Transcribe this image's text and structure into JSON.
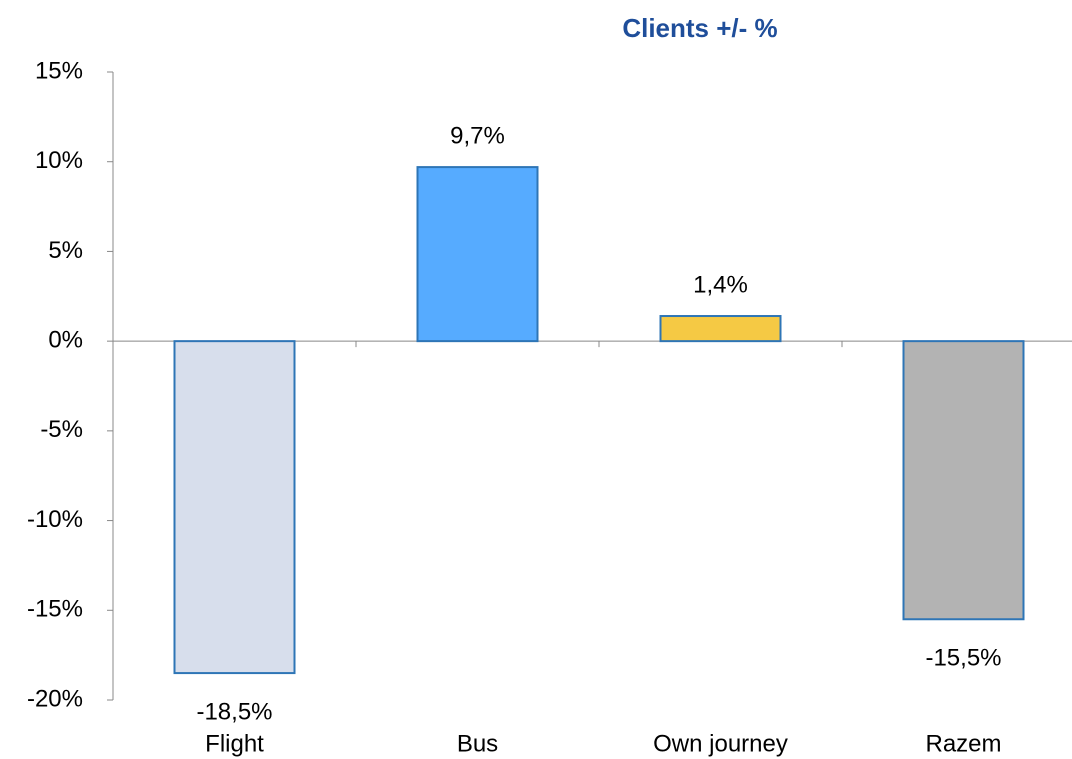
{
  "chart_data": {
    "type": "bar",
    "title": "Clients +/- %",
    "categories": [
      "Flight",
      "Bus",
      "Own journey",
      "Razem"
    ],
    "values": [
      -18.5,
      9.7,
      1.4,
      -15.5
    ],
    "value_labels": [
      "-18,5%",
      "9,7%",
      "1,4%",
      "-15,5%"
    ],
    "colors": [
      "#c9d3e6",
      "#1e8fff",
      "#f2b705",
      "#9a9a9a"
    ],
    "ylim": [
      -20,
      15
    ],
    "yticks": [
      {
        "value": -20,
        "label": "-20%"
      },
      {
        "value": -15,
        "label": "-15%"
      },
      {
        "value": -10,
        "label": "-10%"
      },
      {
        "value": -5,
        "label": "-5%"
      },
      {
        "value": 0,
        "label": "0%"
      },
      {
        "value": 5,
        "label": "5%"
      },
      {
        "value": 10,
        "label": "10%"
      },
      {
        "value": 15,
        "label": "15%"
      }
    ],
    "grid": false
  }
}
